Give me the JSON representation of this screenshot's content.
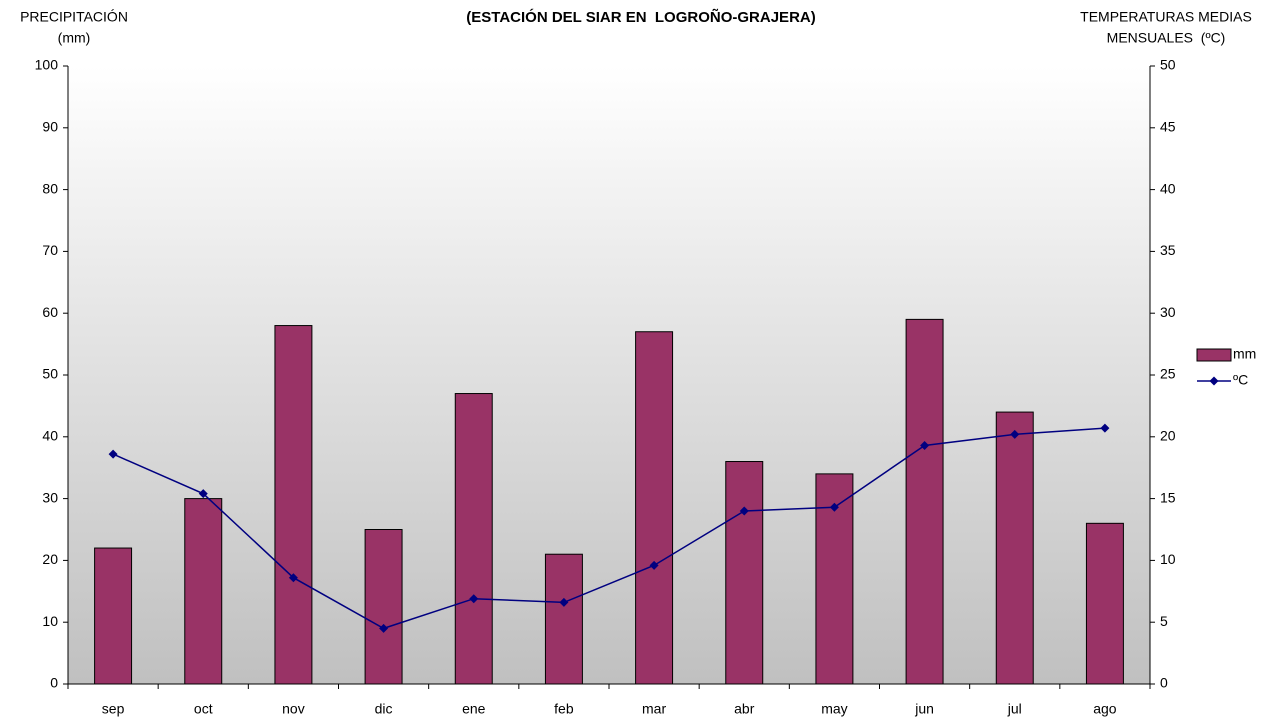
{
  "chart_data": {
    "type": "bar_line",
    "title": "(ESTACIÓN DEL SIAR EN  LOGROÑO-GRAJERA)",
    "ylabel": [
      "PRECIPITACIÓN",
      "(mm)"
    ],
    "y2label": [
      "TEMPERATURAS MEDIAS",
      "MENSUALES  (ºC)"
    ],
    "categories": [
      "sep",
      "oct",
      "nov",
      "dic",
      "ene",
      "feb",
      "mar",
      "abr",
      "may",
      "jun",
      "jul",
      "ago"
    ],
    "series": [
      {
        "name": "mm",
        "type": "bar",
        "color": "#993366",
        "values": [
          22,
          30,
          58,
          25,
          47,
          21,
          57,
          36,
          34,
          59,
          44,
          26
        ]
      },
      {
        "name": "ºC",
        "type": "line",
        "axis": "y2",
        "color": "#000080",
        "values": [
          18.6,
          15.4,
          8.6,
          4.5,
          6.9,
          6.6,
          9.6,
          14.0,
          14.3,
          19.3,
          20.2,
          20.7
        ]
      }
    ],
    "ylim": [
      0,
      100
    ],
    "yticks": [
      0,
      10,
      20,
      30,
      40,
      50,
      60,
      70,
      80,
      90,
      100
    ],
    "y2lim": [
      0,
      50
    ],
    "y2ticks": [
      0,
      5,
      10,
      15,
      20,
      25,
      30,
      35,
      40,
      45,
      50
    ],
    "legend": "right"
  }
}
